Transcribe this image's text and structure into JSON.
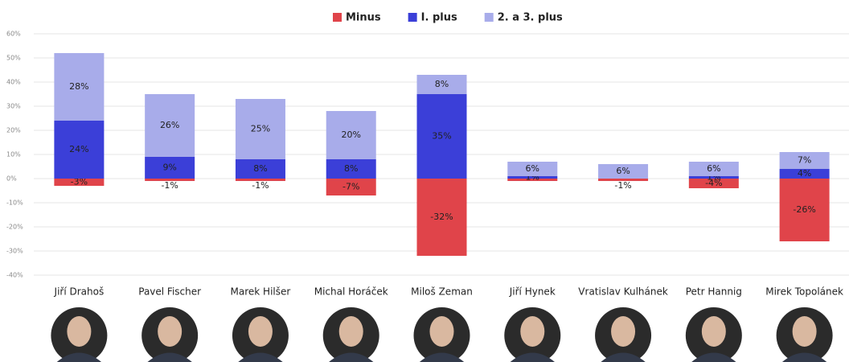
{
  "chart_data": {
    "type": "stacked-bar",
    "categories": [
      "Jiří Drahoš",
      "Pavel Fischer",
      "Marek Hilšer",
      "Michal Horáček",
      "Miloš Zeman",
      "Jiří Hynek",
      "Vratislav Kulhánek",
      "Petr Hannig",
      "Mirek Topolánek"
    ],
    "series": [
      {
        "name": "Minus",
        "color": "#e0444a",
        "values": [
          -3,
          -1,
          -1,
          -7,
          -32,
          -1,
          -1,
          -4,
          -26
        ],
        "value_labels": [
          "-3%",
          "-1%",
          "-1%",
          "-7%",
          "-32%",
          null,
          "-1%",
          "-4%",
          "-26%"
        ]
      },
      {
        "name": "I. plus",
        "color": "#3b3fd8",
        "values": [
          24,
          9,
          8,
          8,
          35,
          1,
          null,
          1,
          4
        ],
        "value_labels": [
          "24%",
          "9%",
          "8%",
          "8%",
          "35%",
          "1%",
          null,
          "1%",
          "4%"
        ]
      },
      {
        "name": "2. a 3. plus",
        "color": "#a8acea",
        "values": [
          28,
          26,
          25,
          20,
          8,
          6,
          6,
          6,
          7
        ],
        "value_labels": [
          "28%",
          "26%",
          "25%",
          "20%",
          "8%",
          "6%",
          "6%",
          "6%",
          "7%"
        ]
      }
    ],
    "ylim": [
      -40,
      60
    ],
    "yticks": [
      {
        "value": -40,
        "label": "-40%"
      },
      {
        "value": -30,
        "label": "-30%"
      },
      {
        "value": -20,
        "label": "-20%"
      },
      {
        "value": -10,
        "label": "-10%"
      },
      {
        "value": 0,
        "label": "0%"
      },
      {
        "value": 10,
        "label": "10%"
      },
      {
        "value": 20,
        "label": "20%"
      },
      {
        "value": 30,
        "label": "30%"
      },
      {
        "value": 40,
        "label": "40%"
      },
      {
        "value": 50,
        "label": "50%"
      },
      {
        "value": 60,
        "label": "60%"
      }
    ],
    "grid": true
  }
}
